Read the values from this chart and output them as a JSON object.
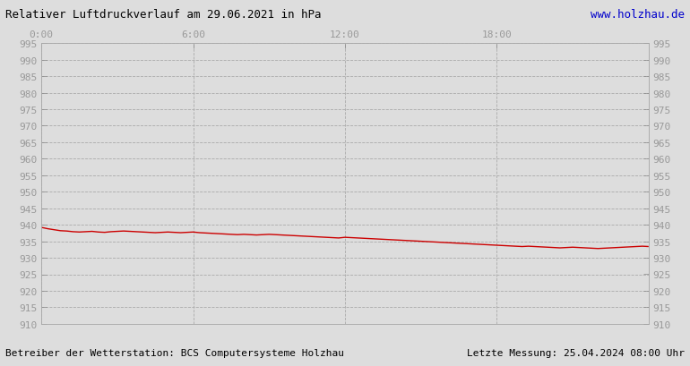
{
  "title": "Relativer Luftdruckverlauf am 29.06.2021 in hPa",
  "url_text": "www.holzhau.de",
  "footer_left": "Betreiber der Wetterstation: BCS Computersysteme Holzhau",
  "footer_right": "Letzte Messung: 25.04.2024 08:00 Uhr",
  "bg_color": "#dddddd",
  "plot_bg_color": "#dddddd",
  "line_color": "#cc0000",
  "grid_color": "#aaaaaa",
  "tick_label_color": "#999999",
  "title_color": "#000000",
  "url_color": "#0000cc",
  "footer_color": "#000000",
  "ylim": [
    910,
    995
  ],
  "ytick_step": 5,
  "xtick_labels": [
    "0:00",
    "6:00",
    "12:00",
    "18:00"
  ],
  "xtick_positions": [
    0,
    6,
    12,
    18
  ],
  "xlim": [
    0,
    24
  ],
  "pressure_data": [
    [
      0.0,
      939.2
    ],
    [
      0.25,
      938.8
    ],
    [
      0.5,
      938.5
    ],
    [
      0.75,
      938.2
    ],
    [
      1.0,
      938.1
    ],
    [
      1.25,
      937.9
    ],
    [
      1.5,
      937.8
    ],
    [
      1.75,
      937.9
    ],
    [
      2.0,
      938.0
    ],
    [
      2.25,
      937.8
    ],
    [
      2.5,
      937.7
    ],
    [
      2.75,
      937.9
    ],
    [
      3.0,
      938.0
    ],
    [
      3.25,
      938.1
    ],
    [
      3.5,
      938.0
    ],
    [
      3.75,
      937.9
    ],
    [
      4.0,
      937.8
    ],
    [
      4.25,
      937.7
    ],
    [
      4.5,
      937.6
    ],
    [
      4.75,
      937.7
    ],
    [
      5.0,
      937.8
    ],
    [
      5.25,
      937.7
    ],
    [
      5.5,
      937.6
    ],
    [
      5.75,
      937.7
    ],
    [
      6.0,
      937.8
    ],
    [
      6.25,
      937.6
    ],
    [
      6.5,
      937.5
    ],
    [
      6.75,
      937.4
    ],
    [
      7.0,
      937.3
    ],
    [
      7.25,
      937.2
    ],
    [
      7.5,
      937.1
    ],
    [
      7.75,
      937.0
    ],
    [
      8.0,
      937.1
    ],
    [
      8.25,
      937.0
    ],
    [
      8.5,
      936.9
    ],
    [
      8.75,
      937.0
    ],
    [
      9.0,
      937.1
    ],
    [
      9.25,
      937.0
    ],
    [
      9.5,
      936.9
    ],
    [
      9.75,
      936.8
    ],
    [
      10.0,
      936.7
    ],
    [
      10.25,
      936.6
    ],
    [
      10.5,
      936.5
    ],
    [
      10.75,
      936.4
    ],
    [
      11.0,
      936.3
    ],
    [
      11.25,
      936.2
    ],
    [
      11.5,
      936.1
    ],
    [
      11.75,
      936.0
    ],
    [
      12.0,
      936.2
    ],
    [
      12.25,
      936.1
    ],
    [
      12.5,
      936.0
    ],
    [
      12.75,
      935.9
    ],
    [
      13.0,
      935.8
    ],
    [
      13.25,
      935.7
    ],
    [
      13.5,
      935.6
    ],
    [
      13.75,
      935.5
    ],
    [
      14.0,
      935.4
    ],
    [
      14.25,
      935.3
    ],
    [
      14.5,
      935.2
    ],
    [
      14.75,
      935.1
    ],
    [
      15.0,
      935.0
    ],
    [
      15.25,
      934.9
    ],
    [
      15.5,
      934.8
    ],
    [
      15.75,
      934.7
    ],
    [
      16.0,
      934.6
    ],
    [
      16.25,
      934.5
    ],
    [
      16.5,
      934.4
    ],
    [
      16.75,
      934.3
    ],
    [
      17.0,
      934.2
    ],
    [
      17.25,
      934.1
    ],
    [
      17.5,
      934.0
    ],
    [
      17.75,
      933.9
    ],
    [
      18.0,
      933.8
    ],
    [
      18.25,
      933.7
    ],
    [
      18.5,
      933.6
    ],
    [
      18.75,
      933.5
    ],
    [
      19.0,
      933.4
    ],
    [
      19.25,
      933.5
    ],
    [
      19.5,
      933.4
    ],
    [
      19.75,
      933.3
    ],
    [
      20.0,
      933.2
    ],
    [
      20.25,
      933.1
    ],
    [
      20.5,
      933.0
    ],
    [
      20.75,
      933.1
    ],
    [
      21.0,
      933.2
    ],
    [
      21.25,
      933.1
    ],
    [
      21.5,
      933.0
    ],
    [
      21.75,
      932.9
    ],
    [
      22.0,
      932.8
    ],
    [
      22.25,
      932.9
    ],
    [
      22.5,
      933.0
    ],
    [
      22.75,
      933.1
    ],
    [
      23.0,
      933.2
    ],
    [
      23.25,
      933.3
    ],
    [
      23.5,
      933.4
    ],
    [
      23.75,
      933.5
    ],
    [
      24.0,
      933.4
    ]
  ]
}
